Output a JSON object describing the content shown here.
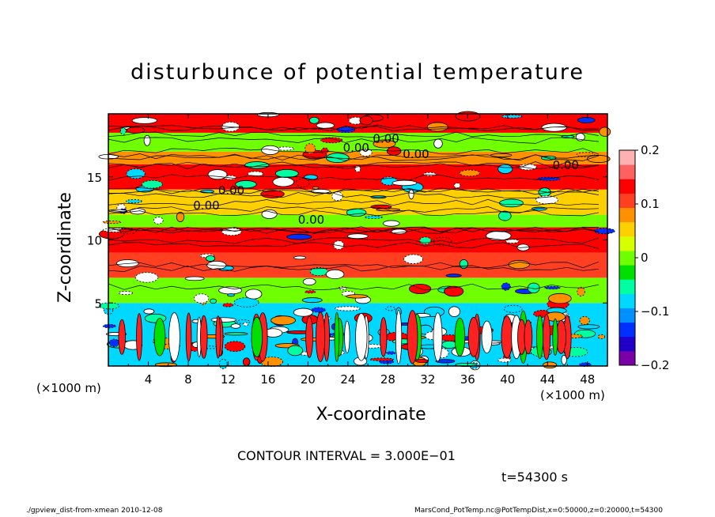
{
  "chart_data": {
    "type": "heatmap",
    "title": "disturbunce of potential temperature",
    "xlabel": "X-coordinate",
    "ylabel": "Z-coordinate",
    "x_unit": "(×1000 m)",
    "y_unit": "(×1000 m)",
    "xlim": [
      0,
      50
    ],
    "ylim": [
      0,
      20
    ],
    "x_ticks": [
      "4",
      "8",
      "12",
      "16",
      "20",
      "24",
      "28",
      "32",
      "36",
      "40",
      "44",
      "48"
    ],
    "x_tick_values": [
      4,
      8,
      12,
      16,
      20,
      24,
      28,
      32,
      36,
      40,
      44,
      48
    ],
    "y_ticks": [
      "5",
      "10",
      "15"
    ],
    "y_tick_values": [
      5,
      10,
      15
    ],
    "colorbar": {
      "ticks": [
        "0.2",
        "0.1",
        "0",
        "−0.1",
        "−0.2"
      ],
      "tick_values": [
        0.2,
        0.1,
        0,
        -0.1,
        -0.2
      ],
      "range": [
        -0.2,
        0.2
      ],
      "colors": [
        "#7a00a8",
        "#2000c8",
        "#0030ff",
        "#0090ff",
        "#00d8ff",
        "#00ffa0",
        "#00e000",
        "#70ff00",
        "#d8ff00",
        "#ffd000",
        "#ff9000",
        "#ff4020",
        "#ff0000",
        "#ff6060",
        "#ffb0b0"
      ]
    },
    "bands": [
      {
        "z0": 0,
        "z1": 5,
        "value": -0.1
      },
      {
        "z0": 5,
        "z1": 7,
        "value": 0.0
      },
      {
        "z0": 7,
        "z1": 9,
        "value": 0.1
      },
      {
        "z0": 9,
        "z1": 11,
        "value": 0.15
      },
      {
        "z0": 11,
        "z1": 12,
        "value": 0.0
      },
      {
        "z0": 12,
        "z1": 14,
        "value": 0.05
      },
      {
        "z0": 14,
        "z1": 16,
        "value": 0.15
      },
      {
        "z0": 16,
        "z1": 17,
        "value": 0.08
      },
      {
        "z0": 17,
        "z1": 18.5,
        "value": 0.0
      },
      {
        "z0": 18.5,
        "z1": 20,
        "value": 0.15
      }
    ],
    "contour_labels": [
      "0.00",
      "0.00",
      "0.00",
      "0.00",
      "0.00",
      "0.00",
      "0.00"
    ]
  },
  "contour_interval": "CONTOUR INTERVAL = 3.000E−01",
  "time_label": "t=54300 s",
  "footer_left": "./gpview_dist-from-xmean   2010-12-08",
  "footer_right": "MarsCond_PotTemp.nc@PotTempDist,x=0:50000,z=0:20000,t=54300"
}
